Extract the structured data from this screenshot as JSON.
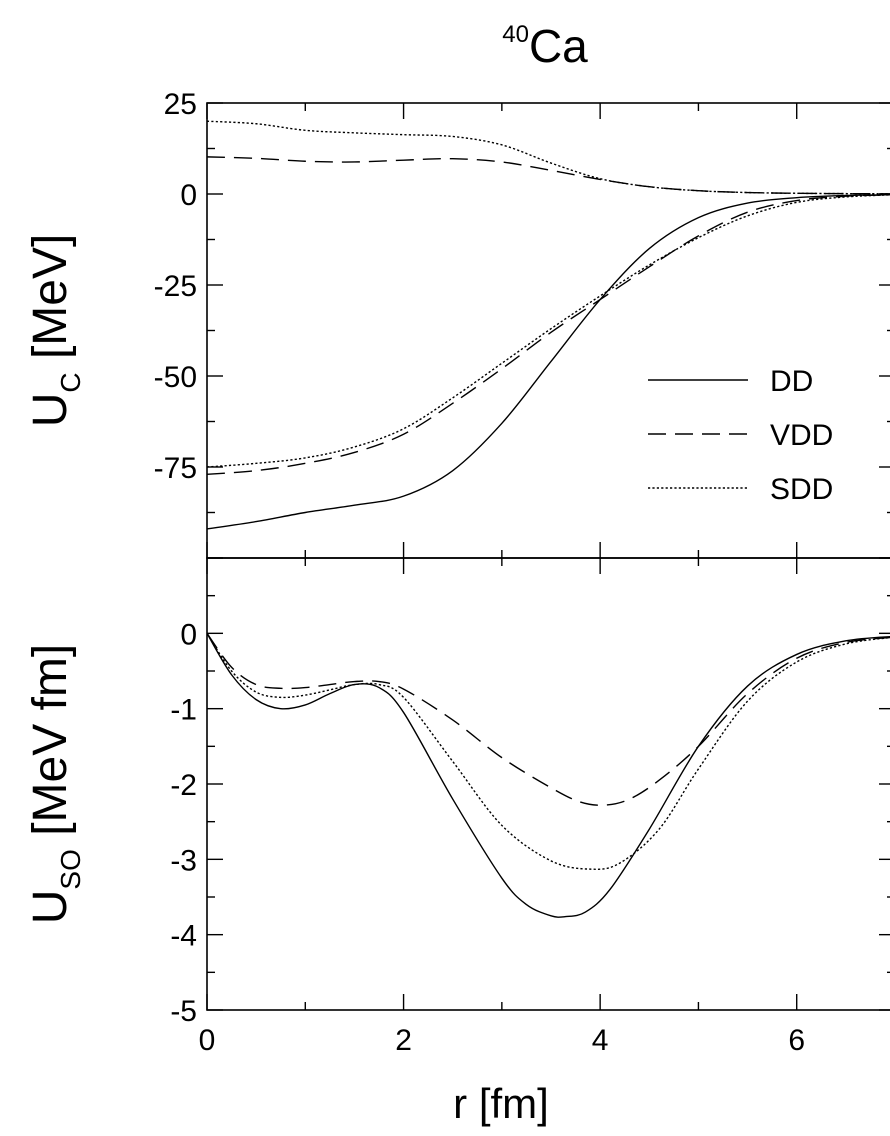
{
  "figure": {
    "title_main": "Ca",
    "title_superscript": "40"
  },
  "chart_data": [
    {
      "type": "line",
      "panel": "top",
      "ylabel_main": "U",
      "ylabel_sub": "C",
      "ylabel_rest": " [MeV]",
      "xlim": [
        0,
        7
      ],
      "ylim": [
        -100,
        25
      ],
      "yticks": [
        25,
        0,
        -25,
        -50,
        -75
      ],
      "ytick_labels": [
        "25",
        "0",
        "-25",
        "-50",
        "-75"
      ],
      "legend_position": "right",
      "series": [
        {
          "name": "DD",
          "style": "solid",
          "x": [
            0,
            0.5,
            1.0,
            1.5,
            2.0,
            2.5,
            3.0,
            3.5,
            4.0,
            4.5,
            5.0,
            5.5,
            6.0,
            6.5,
            7.0
          ],
          "y": [
            -92,
            -90,
            -87.5,
            -85.5,
            -83,
            -76,
            -63,
            -46,
            -29,
            -15,
            -6.5,
            -2.5,
            -1,
            -0.4,
            -0.2
          ]
        },
        {
          "name": "VDD",
          "style": "dashed",
          "x": [
            0,
            0.5,
            1.0,
            1.5,
            2.0,
            2.5,
            3.0,
            3.5,
            4.0,
            4.5,
            5.0,
            5.5,
            6.0,
            6.5,
            7.0
          ],
          "y": [
            -77,
            -76,
            -74,
            -71,
            -66,
            -57.5,
            -48,
            -38,
            -29,
            -20,
            -11.5,
            -5,
            -1.8,
            -0.6,
            -0.2
          ]
        },
        {
          "name": "SDD",
          "style": "dotted",
          "x": [
            0,
            0.5,
            1.0,
            1.5,
            2.0,
            2.5,
            3.0,
            3.5,
            4.0,
            4.5,
            5.0,
            5.5,
            6.0,
            6.5,
            7.0
          ],
          "y": [
            -75,
            -74,
            -72.5,
            -69.5,
            -64.5,
            -56,
            -46.5,
            -37,
            -28,
            -19.5,
            -12,
            -6,
            -2.3,
            -0.8,
            -0.2
          ]
        },
        {
          "name": "",
          "style": "dashed",
          "x": [
            0,
            0.5,
            1.0,
            1.5,
            2.0,
            2.5,
            3.0,
            3.5,
            4.0,
            4.5,
            5.0,
            5.5,
            6.0,
            6.5,
            7.0
          ],
          "y": [
            10.2,
            9.8,
            9.0,
            8.8,
            9.3,
            9.7,
            8.8,
            6.5,
            4.0,
            2.0,
            0.9,
            0.4,
            0.2,
            0.1,
            0.05
          ]
        },
        {
          "name": "",
          "style": "dotted",
          "x": [
            0,
            0.5,
            1.0,
            1.5,
            2.0,
            2.5,
            3.0,
            3.5,
            4.0,
            4.5,
            5.0,
            5.5,
            6.0,
            6.5,
            7.0
          ],
          "y": [
            20,
            19.3,
            17.5,
            16.8,
            16.3,
            15.8,
            13.5,
            8.5,
            4.2,
            2.0,
            0.9,
            0.4,
            0.2,
            0.1,
            0.05
          ]
        }
      ]
    },
    {
      "type": "line",
      "panel": "bottom",
      "ylabel_main": "U",
      "ylabel_sub": "SO",
      "ylabel_rest": " [MeV fm]",
      "xlabel": "r [fm]",
      "xlim": [
        0,
        7
      ],
      "ylim": [
        -5,
        1
      ],
      "xticks": [
        0,
        2,
        4,
        6
      ],
      "xtick_labels": [
        "0",
        "2",
        "4",
        "6"
      ],
      "yticks": [
        0,
        -1,
        -2,
        -3,
        -4,
        -5
      ],
      "ytick_labels": [
        "0",
        "-1",
        "-2",
        "-3",
        "-4",
        "-5"
      ],
      "series": [
        {
          "name": "DD",
          "style": "solid",
          "x": [
            0,
            0.25,
            0.5,
            0.75,
            1.0,
            1.25,
            1.5,
            1.75,
            2.0,
            2.5,
            3.0,
            3.25,
            3.5,
            3.65,
            3.85,
            4.1,
            4.5,
            5.0,
            5.5,
            6.0,
            6.5,
            7.0
          ],
          "y": [
            0,
            -0.55,
            -0.88,
            -1.0,
            -0.95,
            -0.8,
            -0.68,
            -0.72,
            -1.05,
            -2.2,
            -3.25,
            -3.6,
            -3.75,
            -3.76,
            -3.7,
            -3.4,
            -2.6,
            -1.5,
            -0.7,
            -0.28,
            -0.1,
            -0.04
          ]
        },
        {
          "name": "VDD",
          "style": "dashed",
          "x": [
            0,
            0.25,
            0.5,
            0.75,
            1.0,
            1.25,
            1.5,
            1.75,
            2.0,
            2.5,
            3.0,
            3.5,
            3.8,
            4.05,
            4.3,
            4.6,
            5.0,
            5.5,
            6.0,
            6.5,
            7.0
          ],
          "y": [
            0,
            -0.45,
            -0.68,
            -0.73,
            -0.72,
            -0.68,
            -0.64,
            -0.64,
            -0.74,
            -1.15,
            -1.65,
            -2.05,
            -2.24,
            -2.28,
            -2.2,
            -1.95,
            -1.5,
            -0.8,
            -0.33,
            -0.12,
            -0.05
          ]
        },
        {
          "name": "SDD",
          "style": "dotted",
          "x": [
            0,
            0.25,
            0.5,
            0.75,
            1.0,
            1.25,
            1.5,
            1.75,
            2.0,
            2.5,
            3.0,
            3.5,
            3.9,
            4.2,
            4.6,
            5.0,
            5.5,
            6.0,
            6.5,
            7.0
          ],
          "y": [
            0,
            -0.5,
            -0.78,
            -0.85,
            -0.82,
            -0.75,
            -0.68,
            -0.68,
            -0.85,
            -1.7,
            -2.55,
            -3.02,
            -3.13,
            -3.05,
            -2.6,
            -1.8,
            -0.9,
            -0.38,
            -0.14,
            -0.05
          ]
        }
      ]
    }
  ]
}
